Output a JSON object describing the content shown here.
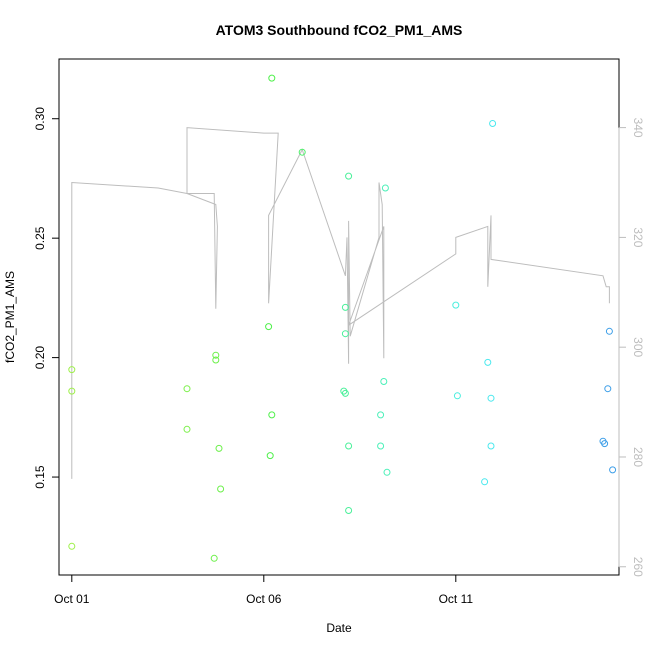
{
  "chart_data": {
    "type": "scatter",
    "title": "ATOM3 Southbound fCO2_PM1_AMS",
    "xlabel": "Date",
    "ylabel": "fCO2_PM1_AMS",
    "y2label": "",
    "xlim": [
      "2016-09-30T16:00",
      "2016-10-15T06:00"
    ],
    "ylim": [
      0.109,
      0.325
    ],
    "y2lim": [
      258.5,
      352.5
    ],
    "x_ticks": [
      {
        "value": "2016-10-01",
        "label": "Oct 01"
      },
      {
        "value": "2016-10-06",
        "label": "Oct 06"
      },
      {
        "value": "2016-10-11",
        "label": "Oct 11"
      }
    ],
    "y_ticks": [
      {
        "value": 0.15,
        "label": "0.15"
      },
      {
        "value": 0.2,
        "label": "0.20"
      },
      {
        "value": 0.25,
        "label": "0.25"
      },
      {
        "value": 0.3,
        "label": "0.30"
      }
    ],
    "y2_ticks": [
      {
        "value": 260,
        "label": "260"
      },
      {
        "value": 280,
        "label": "280"
      },
      {
        "value": 300,
        "label": "300"
      },
      {
        "value": 320,
        "label": "320"
      },
      {
        "value": 340,
        "label": "340"
      }
    ],
    "grid": false,
    "series": [
      {
        "marker": "open-circle",
        "axis": "left",
        "color_scale": "green-to-blue by date",
        "points": [
          {
            "x": "2016-10-01T00:00",
            "y": 0.195,
            "color": "#9ef04a"
          },
          {
            "x": "2016-10-01T00:00",
            "y": 0.186,
            "color": "#9ef04a"
          },
          {
            "x": "2016-10-01T00:00",
            "y": 0.121,
            "color": "#9ef04a"
          },
          {
            "x": "2016-10-04T00:00",
            "y": 0.187,
            "color": "#7cf04a"
          },
          {
            "x": "2016-10-04T00:00",
            "y": 0.17,
            "color": "#7cf04a"
          },
          {
            "x": "2016-10-04T18:00",
            "y": 0.201,
            "color": "#6cf04a"
          },
          {
            "x": "2016-10-04T18:00",
            "y": 0.199,
            "color": "#6cf04a"
          },
          {
            "x": "2016-10-04T20:00",
            "y": 0.162,
            "color": "#6cf04a"
          },
          {
            "x": "2016-10-04T21:00",
            "y": 0.145,
            "color": "#6cf04a"
          },
          {
            "x": "2016-10-04T17:00",
            "y": 0.116,
            "color": "#6cf04a"
          },
          {
            "x": "2016-10-06T05:00",
            "y": 0.317,
            "color": "#4ef04a"
          },
          {
            "x": "2016-10-06T03:00",
            "y": 0.213,
            "color": "#4ef04a"
          },
          {
            "x": "2016-10-06T05:00",
            "y": 0.176,
            "color": "#4ef04a"
          },
          {
            "x": "2016-10-06T04:00",
            "y": 0.159,
            "color": "#4ef04a"
          },
          {
            "x": "2016-10-07T00:00",
            "y": 0.286,
            "color": "#4ef06a"
          },
          {
            "x": "2016-10-08T05:00",
            "y": 0.276,
            "color": "#4af09a"
          },
          {
            "x": "2016-10-08T03:00",
            "y": 0.221,
            "color": "#4af09a"
          },
          {
            "x": "2016-10-08T03:00",
            "y": 0.21,
            "color": "#4af09a"
          },
          {
            "x": "2016-10-08T02:00",
            "y": 0.186,
            "color": "#4af09a"
          },
          {
            "x": "2016-10-08T03:00",
            "y": 0.185,
            "color": "#4af09a"
          },
          {
            "x": "2016-10-08T05:00",
            "y": 0.163,
            "color": "#4af09a"
          },
          {
            "x": "2016-10-08T05:00",
            "y": 0.136,
            "color": "#4af09a"
          },
          {
            "x": "2016-10-09T04:00",
            "y": 0.271,
            "color": "#4af0b8"
          },
          {
            "x": "2016-10-09T03:00",
            "y": 0.19,
            "color": "#4af0b8"
          },
          {
            "x": "2016-10-09T01:00",
            "y": 0.176,
            "color": "#4af0b8"
          },
          {
            "x": "2016-10-09T01:00",
            "y": 0.163,
            "color": "#4af0b8"
          },
          {
            "x": "2016-10-09T05:00",
            "y": 0.152,
            "color": "#4af0b8"
          },
          {
            "x": "2016-10-11T00:00",
            "y": 0.222,
            "color": "#4aeede"
          },
          {
            "x": "2016-10-11T01:00",
            "y": 0.184,
            "color": "#4aeede"
          },
          {
            "x": "2016-10-11T20:00",
            "y": 0.198,
            "color": "#4ae8ee"
          },
          {
            "x": "2016-10-11T22:00",
            "y": 0.183,
            "color": "#4ae8ee"
          },
          {
            "x": "2016-10-11T22:00",
            "y": 0.163,
            "color": "#4ae8ee"
          },
          {
            "x": "2016-10-11T18:00",
            "y": 0.148,
            "color": "#4ae8ee"
          },
          {
            "x": "2016-10-11T23:00",
            "y": 0.298,
            "color": "#4ae8ee"
          },
          {
            "x": "2016-10-15T00:00",
            "y": 0.211,
            "color": "#3c9ee8"
          },
          {
            "x": "2016-10-14T23:00",
            "y": 0.187,
            "color": "#3c9ee8"
          },
          {
            "x": "2016-10-14T20:00",
            "y": 0.165,
            "color": "#3c9ee8"
          },
          {
            "x": "2016-10-14T21:00",
            "y": 0.164,
            "color": "#3c9ee8"
          },
          {
            "x": "2016-10-15T02:00",
            "y": 0.153,
            "color": "#3c9ee8"
          }
        ]
      },
      {
        "marker": "line",
        "axis": "right",
        "color": "#bdbdbd",
        "points": [
          {
            "x": "2016-10-01T00:00",
            "y": 276
          },
          {
            "x": "2016-10-01T00:00",
            "y": 330
          },
          {
            "x": "2016-10-03T06:00",
            "y": 329
          },
          {
            "x": "2016-10-04T00:00",
            "y": 328
          },
          {
            "x": "2016-10-04T17:00",
            "y": 328
          },
          {
            "x": "2016-10-04T18:00",
            "y": 307
          },
          {
            "x": "2016-10-04T19:00",
            "y": 322
          },
          {
            "x": "2016-10-04T18:00",
            "y": 326
          },
          {
            "x": "2016-10-04T00:00",
            "y": 328
          },
          {
            "x": "2016-10-04T00:00",
            "y": 340
          },
          {
            "x": "2016-10-06T00:00",
            "y": 339
          },
          {
            "x": "2016-10-06T09:00",
            "y": 339
          },
          {
            "x": "2016-10-06T03:00",
            "y": 308
          },
          {
            "x": "2016-10-06T03:00",
            "y": 324
          },
          {
            "x": "2016-10-07T00:00",
            "y": 336
          },
          {
            "x": "2016-10-08T03:00",
            "y": 313
          },
          {
            "x": "2016-10-08T04:00",
            "y": 320
          },
          {
            "x": "2016-10-08T05:00",
            "y": 297
          },
          {
            "x": "2016-10-08T05:00",
            "y": 323
          },
          {
            "x": "2016-10-08T06:00",
            "y": 302
          },
          {
            "x": "2016-10-09T00:00",
            "y": 320
          },
          {
            "x": "2016-10-09T00:00",
            "y": 330
          },
          {
            "x": "2016-10-09T02:00",
            "y": 326
          },
          {
            "x": "2016-10-09T03:00",
            "y": 298
          },
          {
            "x": "2016-10-09T03:00",
            "y": 322
          },
          {
            "x": "2016-10-08T05:00",
            "y": 304
          },
          {
            "x": "2016-10-11T00:00",
            "y": 317
          },
          {
            "x": "2016-10-11T00:00",
            "y": 320
          },
          {
            "x": "2016-10-11T20:00",
            "y": 322
          },
          {
            "x": "2016-10-11T20:00",
            "y": 311
          },
          {
            "x": "2016-10-11T22:00",
            "y": 324
          },
          {
            "x": "2016-10-11T22:00",
            "y": 316
          },
          {
            "x": "2016-10-14T20:00",
            "y": 313
          },
          {
            "x": "2016-10-14T22:00",
            "y": 311
          },
          {
            "x": "2016-10-15T00:00",
            "y": 311
          },
          {
            "x": "2016-10-15T00:00",
            "y": 308
          }
        ]
      }
    ]
  }
}
